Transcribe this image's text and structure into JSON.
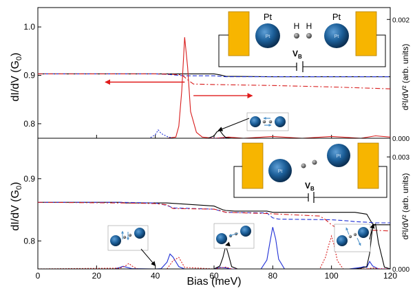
{
  "chart_data": [
    {
      "type": "line",
      "panel": "top",
      "title": "",
      "xlabel": "Bias (meV)",
      "ylabel": "dI/dV (G",
      "ylabel_sub": "0",
      "ylabel_close": ")",
      "ylabel_right": "d²I/dV² (arb. units)",
      "xlim": [
        0,
        120
      ],
      "ylim": [
        0.77,
        1.04
      ],
      "yticks": [
        0.8,
        0.9,
        1.0
      ],
      "ytick_labels": [
        "0.8",
        "0.9",
        "1.0"
      ],
      "ylim_right": [
        0,
        0.0022
      ],
      "yticks_right": [
        0,
        0.002
      ],
      "ytick_labels_right": [
        "0.000",
        "0.002"
      ],
      "series": [
        {
          "name": "",
          "style": "solid",
          "color": "#000000",
          "axis": "left",
          "x": [
            0,
            40,
            60,
            62,
            64,
            80,
            100,
            120
          ],
          "y": [
            0.903,
            0.903,
            0.903,
            0.901,
            0.898,
            0.897,
            0.897,
            0.897
          ]
        },
        {
          "name": "",
          "style": "dashed",
          "color": "#1f2fd6",
          "axis": "left",
          "x": [
            0,
            40,
            44,
            48,
            50,
            60,
            64,
            80,
            100,
            120
          ],
          "y": [
            0.903,
            0.903,
            0.902,
            0.9,
            0.899,
            0.899,
            0.897,
            0.897,
            0.897,
            0.897
          ]
        },
        {
          "name": "",
          "style": "dashdot",
          "color": "#d81b1b",
          "axis": "left",
          "x": [
            0,
            40,
            46,
            49,
            51,
            53,
            60,
            80,
            100,
            120
          ],
          "y": [
            0.903,
            0.903,
            0.902,
            0.901,
            0.891,
            0.882,
            0.881,
            0.879,
            0.876,
            0.872
          ]
        },
        {
          "name": "",
          "style": "solid",
          "color": "#d81b1b",
          "axis": "right",
          "x": [
            0,
            44,
            47,
            48,
            49,
            50,
            51,
            52,
            54,
            56,
            60,
            65,
            70,
            80,
            90,
            100,
            110,
            115,
            120
          ],
          "y": [
            0,
            0,
            2e-05,
            0.0002,
            0.0008,
            0.0017,
            0.0012,
            0.00045,
            0.0001,
            2e-05,
            0,
            2e-05,
            0,
            3e-05,
            0,
            3e-05,
            0,
            4e-05,
            2e-05
          ]
        },
        {
          "name": "",
          "style": "dotted",
          "color": "#1f2fd6",
          "axis": "right",
          "x": [
            0,
            38,
            40,
            41,
            42,
            44,
            46,
            60,
            80,
            100,
            120
          ],
          "y": [
            0,
            0,
            6e-05,
            0.00014,
            8e-05,
            3e-05,
            0,
            0,
            0,
            0,
            0
          ]
        },
        {
          "name": "",
          "style": "solid",
          "color": "#000000",
          "axis": "right",
          "x": [
            0,
            58,
            60,
            61,
            62,
            63,
            64,
            66,
            80,
            120
          ],
          "y": [
            0,
            0,
            4e-05,
            0.00011,
            0.00013,
            6e-05,
            1e-05,
            0,
            0,
            0
          ]
        }
      ],
      "annotations": {
        "arrow_left": {
          "from_x": 50,
          "to_x": 23,
          "y": 0.886
        },
        "arrow_right": {
          "from_x": 53,
          "to_x": 73,
          "y": 0.858
        },
        "pointer": {
          "x": 61,
          "y_right": 0.00013
        },
        "labels": {
          "pt_left": "Pt",
          "pt_right": "Pt",
          "h1": "H",
          "h2": "H",
          "ball_text": "Pt",
          "vb": "V",
          "vb_sub": "B"
        }
      }
    },
    {
      "type": "line",
      "panel": "bottom",
      "title": "",
      "xlabel": "Bias (meV)",
      "ylabel": "dI/dV (G",
      "ylabel_sub": "0",
      "ylabel_close": ")",
      "ylabel_right": "d²I/dV² (arb. units)",
      "xlim": [
        0,
        120
      ],
      "xticks": [
        0,
        20,
        40,
        60,
        80,
        100,
        120
      ],
      "xtick_labels": [
        "0",
        "20",
        "40",
        "60",
        "80",
        "100",
        "120"
      ],
      "ylim": [
        0.755,
        0.965
      ],
      "yticks": [
        0.8,
        0.9
      ],
      "ytick_labels": [
        "0.8",
        "0.9"
      ],
      "ylim_right": [
        0,
        0.0035
      ],
      "yticks_right": [
        0,
        0.003
      ],
      "ytick_labels_right": [
        "0.000",
        "0.003"
      ],
      "series": [
        {
          "name": "",
          "style": "solid",
          "color": "#000000",
          "axis": "left",
          "x": [
            0,
            28,
            30,
            40,
            44,
            60,
            62,
            63,
            64,
            67,
            78,
            80,
            100,
            108,
            112,
            113,
            114,
            115,
            120
          ],
          "y": [
            0.862,
            0.862,
            0.861,
            0.861,
            0.861,
            0.856,
            0.852,
            0.85,
            0.849,
            0.848,
            0.848,
            0.846,
            0.846,
            0.846,
            0.843,
            0.835,
            0.827,
            0.826,
            0.826
          ]
        },
        {
          "name": "",
          "style": "dashed",
          "color": "#1f2fd6",
          "axis": "left",
          "x": [
            0,
            28,
            40,
            44,
            46,
            60,
            64,
            78,
            80,
            82,
            100,
            106,
            108,
            112,
            115,
            120
          ],
          "y": [
            0.862,
            0.862,
            0.861,
            0.857,
            0.853,
            0.851,
            0.846,
            0.845,
            0.837,
            0.835,
            0.834,
            0.832,
            0.831,
            0.83,
            0.829,
            0.829
          ]
        },
        {
          "name": "",
          "style": "dashdot",
          "color": "#d81b1b",
          "axis": "left",
          "x": [
            0,
            28,
            40,
            44,
            46,
            60,
            62,
            64,
            78,
            96,
            98,
            100,
            102,
            108,
            115,
            120
          ],
          "y": [
            0.862,
            0.861,
            0.86,
            0.858,
            0.852,
            0.851,
            0.849,
            0.846,
            0.844,
            0.84,
            0.834,
            0.826,
            0.82,
            0.818,
            0.817,
            0.816
          ]
        },
        {
          "name": "",
          "style": "solid",
          "color": "#1f2fd6",
          "axis": "right",
          "x": [
            0,
            26,
            28,
            29,
            30,
            32,
            40,
            42,
            44,
            45,
            46,
            48,
            50,
            60,
            62,
            64,
            66,
            76,
            78,
            79,
            80,
            81,
            82,
            84,
            100,
            106,
            108,
            110,
            111,
            112,
            113,
            114,
            116,
            120
          ],
          "y": [
            0,
            0,
            4e-05,
            7e-05,
            5e-05,
            1e-05,
            0,
            1e-05,
            0.00018,
            0.0004,
            0.00032,
            6e-05,
            0,
            0,
            4e-05,
            3e-05,
            0,
            0,
            0.00024,
            0.0007,
            0.00112,
            0.0008,
            0.00026,
            0,
            0,
            0,
            2e-05,
            4e-05,
            6e-05,
            4e-05,
            0.0002,
            8e-05,
            0,
            0
          ]
        },
        {
          "name": "",
          "style": "dotted",
          "color": "#d81b1b",
          "axis": "right",
          "x": [
            0,
            28,
            30,
            31,
            32,
            34,
            44,
            46,
            48,
            50,
            60,
            62,
            64,
            66,
            96,
            98,
            99,
            100,
            101,
            102,
            104,
            112,
            114,
            116,
            120
          ],
          "y": [
            0,
            2e-05,
            9e-05,
            0.00015,
            8e-05,
            0,
            0,
            0.00022,
            0.00031,
            4e-05,
            0,
            3e-05,
            5e-05,
            0,
            0,
            0.00032,
            0.00062,
            0.00088,
            0.0006,
            0.00022,
            0,
            0,
            3e-05,
            1e-05,
            0
          ]
        },
        {
          "name": "",
          "style": "solid",
          "color": "#000000",
          "axis": "right",
          "x": [
            0,
            60,
            62,
            63,
            64,
            65,
            66,
            68,
            108,
            110,
            112,
            113,
            114,
            115,
            116,
            118,
            120
          ],
          "y": [
            0,
            0,
            8e-05,
            0.0003,
            0.00062,
            0.00036,
            6e-05,
            0,
            0,
            2e-05,
            6e-05,
            0.00042,
            0.00112,
            0.0012,
            0.0007,
            5e-05,
            0
          ]
        }
      ],
      "annotations": {
        "pointer_1": {
          "x": 40,
          "y_right": 5e-05
        },
        "pointer_2": {
          "x": 64,
          "y_right": 0.0006
        },
        "pointer_3": {
          "x": 114,
          "y_right": 0.00118
        },
        "labels": {
          "vb": "V",
          "vb_sub": "B"
        }
      }
    }
  ]
}
